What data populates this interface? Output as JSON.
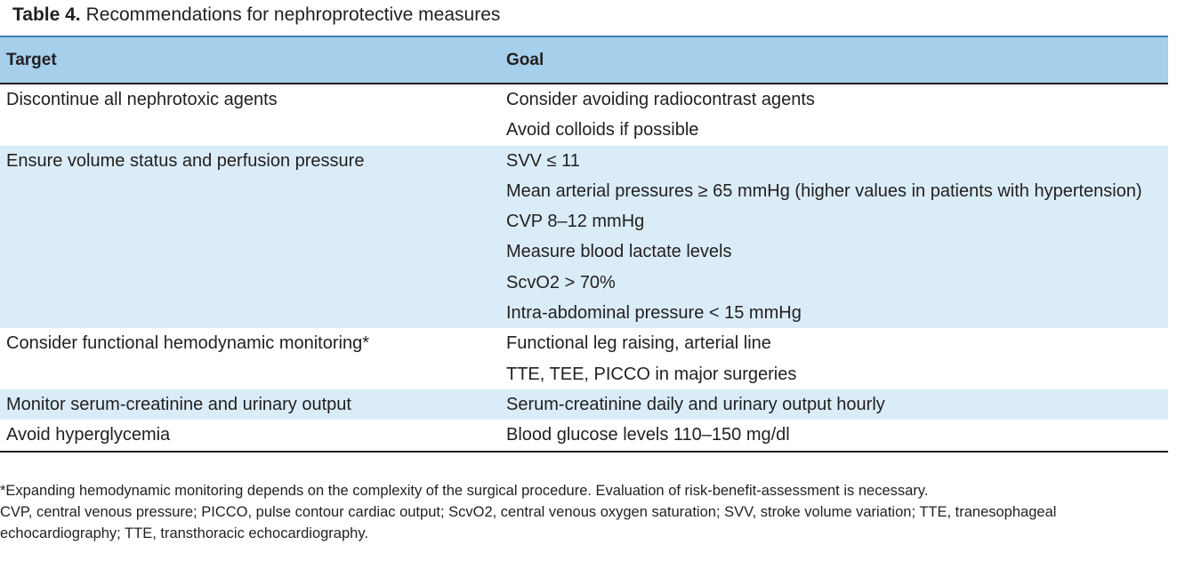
{
  "caption": {
    "label": "Table 4.",
    "title": "Recommendations for nephroprotective measures"
  },
  "headers": {
    "target": "Target",
    "goal": "Goal"
  },
  "rows": [
    {
      "target": "Discontinue all nephrotoxic agents",
      "goals": [
        "Consider avoiding radiocontrast agents",
        "Avoid colloids if possible"
      ]
    },
    {
      "target": "Ensure volume status and perfusion pressure",
      "goals": [
        "SVV ≤ 11",
        "Mean arterial pressures ≥ 65 mmHg (higher values in patients with hypertension)",
        "CVP 8–12 mmHg",
        "Measure blood lactate levels",
        "ScvO2 > 70%",
        "Intra-abdominal pressure < 15 mmHg"
      ]
    },
    {
      "target": "Consider functional hemodynamic monitoring*",
      "goals": [
        "Functional leg raising, arterial line",
        "TTE, TEE, PICCO in major surgeries"
      ]
    },
    {
      "target": "Monitor serum-creatinine and urinary output",
      "goals": [
        "Serum-creatinine daily and urinary output hourly"
      ]
    },
    {
      "target": "Avoid hyperglycemia",
      "goals": [
        "Blood glucose levels 110–150 mg/dl"
      ]
    }
  ],
  "footnotes": [
    "*Expanding hemodynamic monitoring depends on the complexity of the surgical procedure. Evaluation of risk-benefit-assessment is necessary.",
    "CVP, central venous pressure; PICCO, pulse contour cardiac output; ScvO2, central venous oxygen saturation; SVV, stroke volume variation; TTE, tranesophageal",
    "echocardiography; TTE, transthoracic echocardiography."
  ]
}
